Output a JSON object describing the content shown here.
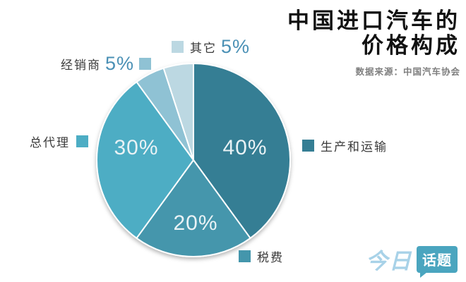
{
  "header": {
    "title_line1": "中国进口汽车的",
    "title_line2": "价格构成",
    "source": "数据来源：中国汽车协会"
  },
  "watermark": {
    "brand": "今日",
    "bubble": "话题"
  },
  "chart_data": {
    "type": "pie",
    "title": "中国进口汽车的价格构成",
    "source": "数据来源：中国汽车协会",
    "direction": "clockwise",
    "start_angle_deg": 0,
    "legend_position": "around",
    "slices": [
      {
        "label": "生产和运输",
        "value": 40,
        "percent_label": "40%",
        "color": "#357e94"
      },
      {
        "label": "税费",
        "value": 20,
        "percent_label": "20%",
        "color": "#4496ac"
      },
      {
        "label": "总代理",
        "value": 30,
        "percent_label": "30%",
        "color": "#4dadc4"
      },
      {
        "label": "经销商",
        "value": 5,
        "percent_label": "5%",
        "color": "#8fc2d4"
      },
      {
        "label": "其它",
        "value": 5,
        "percent_label": "5%",
        "color": "#bcd8e2"
      }
    ]
  }
}
